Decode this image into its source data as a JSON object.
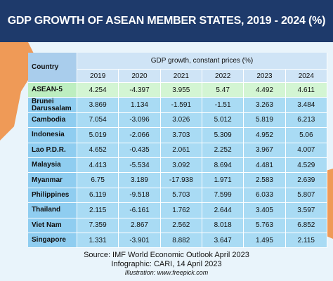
{
  "title": "GDP GROWTH OF ASEAN MEMBER STATES, 2019 - 2024 (%)",
  "table": {
    "country_header": "Country",
    "group_header": "GDP growth, constant prices (%)",
    "years": [
      "2019",
      "2020",
      "2021",
      "2022",
      "2023",
      "2024"
    ],
    "rows": [
      [
        "ASEAN-5",
        "4.254",
        "-4.397",
        "3.955",
        "5.47",
        "4.492",
        "4.611"
      ],
      [
        "Brunei Darussalam",
        "3.869",
        "1.134",
        "-1.591",
        "-1.51",
        "3.263",
        "3.484"
      ],
      [
        "Cambodia",
        "7.054",
        "-3.096",
        "3.026",
        "5.012",
        "5.819",
        "6.213"
      ],
      [
        "Indonesia",
        "5.019",
        "-2.066",
        "3.703",
        "5.309",
        "4.952",
        "5.06"
      ],
      [
        "Lao P.D.R.",
        "4.652",
        "-0.435",
        "2.061",
        "2.252",
        "3.967",
        "4.007"
      ],
      [
        "Malaysia",
        "4.413",
        "-5.534",
        "3.092",
        "8.694",
        "4.481",
        "4.529"
      ],
      [
        "Myanmar",
        "6.75",
        "3.189",
        "-17.938",
        "1.971",
        "2.583",
        "2.639"
      ],
      [
        "Philippines",
        "6.119",
        "-9.518",
        "5.703",
        "7.599",
        "6.033",
        "5.807"
      ],
      [
        "Thailand",
        "2.115",
        "-6.161",
        "1.762",
        "2.644",
        "3.405",
        "3.597"
      ],
      [
        "Viet Nam",
        "7.359",
        "2.867",
        "2.562",
        "8.018",
        "5.763",
        "6.852"
      ],
      [
        "Singapore",
        "1.331",
        "-3.901",
        "8.882",
        "3.647",
        "1.495",
        "2.115"
      ]
    ]
  },
  "footer": {
    "source": "Source: IMF World Economic Outlook April 2023",
    "infographic": "Infographic: CARI, 14 April 2023",
    "illustration": "Illustration: www.freepick.com"
  }
}
